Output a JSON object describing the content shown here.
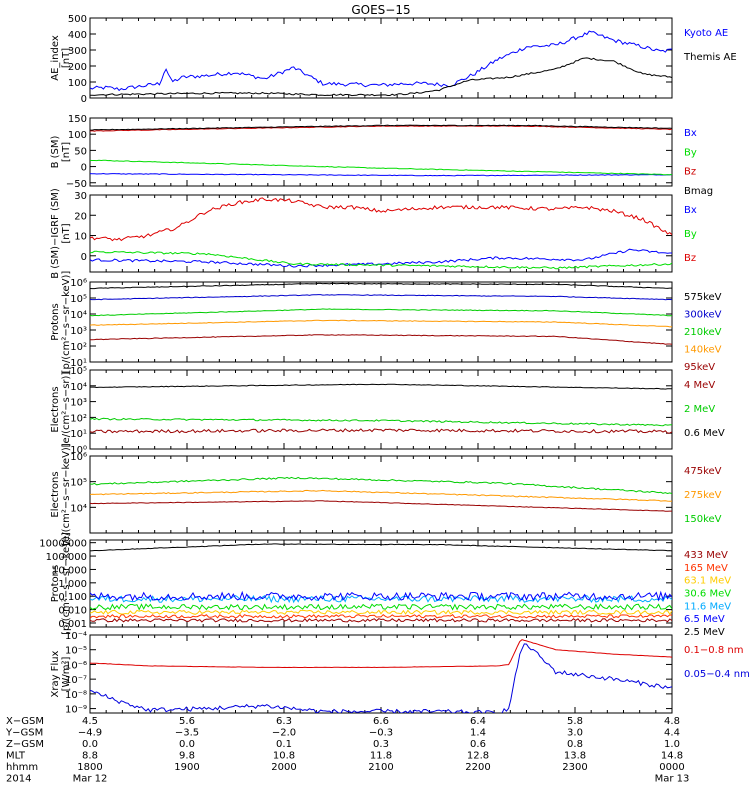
{
  "title": "GOES−15",
  "chart_data": [
    {
      "type": "line",
      "id": "ae",
      "ylabel": [
        "AE_index",
        "[nT]"
      ],
      "ylim": [
        0,
        500
      ],
      "scale": "linear",
      "yticks": [
        {
          "v": 0,
          "t": "0"
        },
        {
          "v": 100,
          "t": "100"
        },
        {
          "v": 200,
          "t": "200"
        },
        {
          "v": 300,
          "t": "300"
        },
        {
          "v": 400,
          "t": "400"
        },
        {
          "v": 500,
          "t": "500"
        }
      ],
      "series": [
        {
          "name": "Kyoto AE",
          "color": "#0000ff",
          "noise": 12,
          "x": [
            0,
            0.03,
            0.05,
            0.06,
            0.12,
            0.13,
            0.14,
            0.16,
            0.2,
            0.25,
            0.3,
            0.35,
            0.4,
            0.5,
            0.54,
            0.58,
            0.62,
            0.66,
            0.7,
            0.75,
            0.8,
            0.83,
            0.86,
            0.9,
            0.95,
            0.98,
            1
          ],
          "y": [
            60,
            65,
            55,
            60,
            90,
            190,
            100,
            130,
            140,
            160,
            120,
            190,
            90,
            80,
            90,
            90,
            80,
            150,
            240,
            320,
            330,
            370,
            410,
            360,
            320,
            290,
            300
          ]
        },
        {
          "name": "Themis AE",
          "color": "#000000",
          "noise": 5,
          "x": [
            0,
            0.1,
            0.2,
            0.3,
            0.4,
            0.52,
            0.56,
            0.6,
            0.65,
            0.72,
            0.8,
            0.85,
            0.9,
            0.95,
            1
          ],
          "y": [
            20,
            25,
            30,
            30,
            20,
            20,
            30,
            50,
            110,
            130,
            180,
            250,
            230,
            150,
            130
          ]
        }
      ]
    },
    {
      "type": "line",
      "id": "bsm",
      "ylabel": [
        "B (SM)",
        "[nT]"
      ],
      "ylim": [
        -60,
        150
      ],
      "scale": "linear",
      "yticks": [
        {
          "v": -50,
          "t": "−50"
        },
        {
          "v": 0,
          "t": "0"
        },
        {
          "v": 50,
          "t": "50"
        },
        {
          "v": 100,
          "t": "100"
        },
        {
          "v": 150,
          "t": "150"
        }
      ],
      "series": [
        {
          "name": "Bx",
          "color": "#0000ff",
          "noise": 1,
          "x": [
            0,
            0.3,
            0.6,
            1
          ],
          "y": [
            -22,
            -25,
            -28,
            -25
          ]
        },
        {
          "name": "By",
          "color": "#00dd00",
          "noise": 1,
          "x": [
            0,
            0.5,
            1
          ],
          "y": [
            20,
            -5,
            -25
          ]
        },
        {
          "name": "Bz",
          "color": "#cc0000",
          "noise": 1,
          "x": [
            0,
            0.5,
            0.75,
            1
          ],
          "y": [
            110,
            125,
            125,
            115
          ]
        },
        {
          "name": "Bmag",
          "color": "#000000",
          "noise": 1,
          "x": [
            0,
            0.5,
            0.75,
            1
          ],
          "y": [
            113,
            127,
            127,
            118
          ]
        }
      ]
    },
    {
      "type": "line",
      "id": "digrf",
      "ylabel": [
        "B (SM)−IGRF (SM)",
        "[nT]"
      ],
      "ylim": [
        -8,
        30
      ],
      "scale": "linear",
      "yticks": [
        {
          "v": 0,
          "t": "0"
        },
        {
          "v": 10,
          "t": "10"
        },
        {
          "v": 20,
          "t": "20"
        },
        {
          "v": 30,
          "t": "30"
        }
      ],
      "series": [
        {
          "name": "Bx",
          "color": "#0000ff",
          "noise": 0.6,
          "x": [
            0,
            0.2,
            0.35,
            0.5,
            0.6,
            0.7,
            0.85,
            0.93,
            1
          ],
          "y": [
            -2,
            -3,
            -5,
            -4,
            -3,
            -1,
            -2,
            3,
            1
          ]
        },
        {
          "name": "By",
          "color": "#00dd00",
          "noise": 0.5,
          "x": [
            0,
            0.2,
            0.35,
            0.6,
            0.8,
            1
          ],
          "y": [
            2,
            1,
            -4,
            -5,
            -6,
            -4
          ]
        },
        {
          "name": "Bz",
          "color": "#dd0000",
          "noise": 0.9,
          "x": [
            0,
            0.05,
            0.1,
            0.15,
            0.2,
            0.25,
            0.3,
            0.35,
            0.4,
            0.45,
            0.5,
            0.55,
            0.6,
            0.7,
            0.8,
            0.85,
            0.9,
            0.95,
            1
          ],
          "y": [
            9,
            8,
            10,
            14,
            22,
            26,
            28,
            27,
            24,
            24,
            22,
            23,
            24,
            24,
            23,
            24,
            22,
            18,
            10
          ]
        }
      ]
    },
    {
      "type": "line",
      "id": "protons",
      "ylabel": [
        "Protons",
        "[p/(cm²−s−sr−keV)]"
      ],
      "ylim": [
        1,
        6
      ],
      "scale": "log",
      "yticks": [
        {
          "v": 1,
          "t": "10¹"
        },
        {
          "v": 2,
          "t": "10²"
        },
        {
          "v": 3,
          "t": "10³"
        },
        {
          "v": 4,
          "t": "10⁴"
        },
        {
          "v": 5,
          "t": "10⁵"
        },
        {
          "v": 6,
          "t": "10⁶"
        }
      ],
      "series": [
        {
          "name": "575keV",
          "color": "#000000",
          "noise": 0.02,
          "x": [
            0,
            0.4,
            0.8,
            1
          ],
          "y": [
            5.6,
            5.9,
            5.85,
            5.6
          ]
        },
        {
          "name": "300keV",
          "color": "#0000cc",
          "noise": 0.02,
          "x": [
            0,
            0.4,
            0.8,
            1
          ],
          "y": [
            4.9,
            5.2,
            5.1,
            4.9
          ]
        },
        {
          "name": "210keV",
          "color": "#00cc00",
          "noise": 0.02,
          "x": [
            0,
            0.4,
            0.8,
            1
          ],
          "y": [
            3.9,
            4.3,
            4.2,
            3.9
          ]
        },
        {
          "name": "140keV",
          "color": "#ff9900",
          "noise": 0.02,
          "x": [
            0,
            0.4,
            0.8,
            1
          ],
          "y": [
            3.3,
            3.6,
            3.5,
            3.2
          ]
        },
        {
          "name": "95keV",
          "color": "#990000",
          "noise": 0.02,
          "x": [
            0,
            0.4,
            0.8,
            1
          ],
          "y": [
            2.4,
            2.7,
            2.6,
            2.1
          ]
        }
      ]
    },
    {
      "type": "line",
      "id": "electrons_mev",
      "ylabel": [
        "Electrons",
        "[e/(cm²−s−sr)]"
      ],
      "ylim": [
        0,
        5
      ],
      "scale": "log",
      "yticks": [
        {
          "v": 0,
          "t": "10⁰"
        },
        {
          "v": 1,
          "t": "10¹"
        },
        {
          "v": 2,
          "t": "10²"
        },
        {
          "v": 3,
          "t": "10³"
        },
        {
          "v": 4,
          "t": "10⁴"
        },
        {
          "v": 5,
          "t": "10⁵"
        }
      ],
      "series": [
        {
          "name": "4 MeV",
          "color": "#990000",
          "noise": 0.1,
          "x": [
            0,
            0.5,
            1
          ],
          "y": [
            1.1,
            1.2,
            1.1
          ]
        },
        {
          "name": "2 MeV",
          "color": "#00cc00",
          "noise": 0.05,
          "x": [
            0,
            0.5,
            1
          ],
          "y": [
            1.9,
            1.8,
            1.5
          ]
        },
        {
          "name": "0.6 MeV",
          "color": "#000000",
          "noise": 0.02,
          "x": [
            0,
            0.5,
            1
          ],
          "y": [
            3.9,
            4.1,
            3.8
          ]
        }
      ]
    },
    {
      "type": "line",
      "id": "electrons_kev",
      "ylabel": [
        "Electrons",
        "[e/(cm²−s−sr−keV)]"
      ],
      "ylim": [
        3,
        6
      ],
      "scale": "log",
      "yticks": [
        {
          "v": 4,
          "t": "10⁴"
        },
        {
          "v": 5,
          "t": "10⁵"
        },
        {
          "v": 6,
          "t": "10⁶"
        }
      ],
      "series": [
        {
          "name": "475keV",
          "color": "#990000",
          "noise": 0.01,
          "x": [
            0,
            0.4,
            1
          ],
          "y": [
            4.15,
            4.25,
            3.85
          ]
        },
        {
          "name": "275keV",
          "color": "#ff9900",
          "noise": 0.02,
          "x": [
            0,
            0.4,
            1
          ],
          "y": [
            4.5,
            4.65,
            4.25
          ]
        },
        {
          "name": "150keV",
          "color": "#00cc00",
          "noise": 0.03,
          "x": [
            0,
            0.35,
            0.7,
            1
          ],
          "y": [
            4.9,
            5.15,
            4.95,
            4.55
          ]
        }
      ]
    },
    {
      "type": "line",
      "id": "protons_mev",
      "ylabel": [
        "Protons",
        "[p/(cm²−s−sr−keV)]"
      ],
      "ylim": [
        -3.3,
        3.2
      ],
      "scale": "log",
      "yticks": [
        {
          "v": -3,
          "t": "0.001"
        },
        {
          "v": -2,
          "t": "0.010"
        },
        {
          "v": -1,
          "t": "0.100"
        },
        {
          "v": 0,
          "t": "1.000"
        },
        {
          "v": 1,
          "t": "10.000"
        },
        {
          "v": 2,
          "t": "100.000"
        },
        {
          "v": 3,
          "t": "1000.000"
        }
      ],
      "series": [
        {
          "name": "433 MeV",
          "color": "#990000",
          "noise": 0.12,
          "x": [
            0,
            1
          ],
          "y": [
            -2.8,
            -2.8
          ]
        },
        {
          "name": "165 MeV",
          "color": "#ff3300",
          "noise": 0.12,
          "x": [
            0,
            1
          ],
          "y": [
            -2.5,
            -2.5
          ]
        },
        {
          "name": "63.1 MeV",
          "color": "#ffcc00",
          "noise": 0.15,
          "x": [
            0,
            1
          ],
          "y": [
            -2.2,
            -2.2
          ]
        },
        {
          "name": "30.6 MeV",
          "color": "#00dd00",
          "noise": 0.2,
          "x": [
            0,
            1
          ],
          "y": [
            -1.8,
            -1.8
          ]
        },
        {
          "name": "11.6 MeV",
          "color": "#00aaff",
          "noise": 0.25,
          "x": [
            0,
            1
          ],
          "y": [
            -1.2,
            -1.2
          ]
        },
        {
          "name": "6.5 MeV",
          "color": "#0000ff",
          "noise": 0.3,
          "x": [
            0,
            1
          ],
          "y": [
            -1.0,
            -1.0
          ]
        },
        {
          "name": "2.5 MeV",
          "color": "#000000",
          "noise": 0.02,
          "x": [
            0,
            0.3,
            0.6,
            1
          ],
          "y": [
            2.4,
            2.9,
            2.85,
            2.4
          ]
        }
      ]
    },
    {
      "type": "line",
      "id": "xray",
      "ylabel": [
        "Xray Flux",
        "[W/m²]"
      ],
      "ylim": [
        -9.3,
        -4
      ],
      "scale": "log",
      "yticks": [
        {
          "v": -9,
          "t": "10⁻⁹"
        },
        {
          "v": -8,
          "t": "10⁻⁸"
        },
        {
          "v": -7,
          "t": "10⁻⁷"
        },
        {
          "v": -6,
          "t": "10⁻⁶"
        },
        {
          "v": -5,
          "t": "10⁻⁵"
        },
        {
          "v": -4,
          "t": "10⁻⁴"
        }
      ],
      "series": [
        {
          "name": "0.1−0.8 nm",
          "color": "#dd0000",
          "noise": 0.01,
          "x": [
            0,
            0.1,
            0.3,
            0.5,
            0.7,
            0.72,
            0.74,
            0.75,
            0.8,
            0.9,
            1
          ],
          "y": [
            -5.9,
            -6.1,
            -6.2,
            -6.2,
            -6.1,
            -6.0,
            -4.3,
            -4.4,
            -5.0,
            -5.3,
            -5.5
          ]
        },
        {
          "name": "0.05−0.4 nm",
          "color": "#0000dd",
          "noise": 0.15,
          "x": [
            0,
            0.05,
            0.1,
            0.2,
            0.3,
            0.4,
            0.5,
            0.6,
            0.7,
            0.72,
            0.74,
            0.75,
            0.8,
            0.9,
            1
          ],
          "y": [
            -7.8,
            -8.5,
            -9.1,
            -9.0,
            -8.8,
            -9.2,
            -9.2,
            -9.2,
            -9.3,
            -9.0,
            -5.0,
            -4.6,
            -6.5,
            -7.0,
            -7.6
          ]
        }
      ]
    }
  ],
  "xaxis": {
    "rows": [
      {
        "label": "X−GSM",
        "values": [
          "4.5",
          "5.6",
          "6.3",
          "6.6",
          "6.4",
          "5.8",
          "4.8"
        ]
      },
      {
        "label": "Y−GSM",
        "values": [
          "−4.9",
          "−3.5",
          "−2.0",
          "−0.3",
          "1.4",
          "3.0",
          "4.4"
        ]
      },
      {
        "label": "Z−GSM",
        "values": [
          "0.0",
          "0.0",
          "0.1",
          "0.3",
          "0.6",
          "0.8",
          "1.0"
        ]
      },
      {
        "label": "MLT",
        "values": [
          "8.8",
          "9.8",
          "10.8",
          "11.8",
          "12.8",
          "13.8",
          "14.8"
        ]
      },
      {
        "label": "hhmm",
        "values": [
          "1800",
          "1900",
          "2000",
          "2100",
          "2200",
          "2300",
          "0000"
        ]
      }
    ],
    "year": "2014",
    "start_date": "Mar 12",
    "end_date": "Mar 13"
  }
}
